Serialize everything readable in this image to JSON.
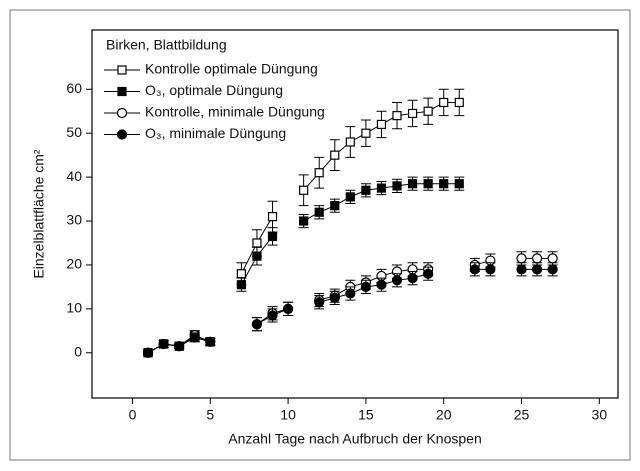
{
  "chart_data": {
    "type": "line",
    "legend_title": "Birken, Blattbildung",
    "xlabel": "Anzahl Tage nach Aufbruch der Knospen",
    "ylabel": "Einzelblattfläche cm²",
    "xlim": [
      -2.6,
      31.2
    ],
    "xticks": [
      0,
      5,
      10,
      15,
      20,
      25,
      30
    ],
    "ylim": [
      -10.3,
      73.5
    ],
    "yticks": [
      0,
      10,
      20,
      30,
      40,
      50,
      60
    ],
    "legend": "upper left",
    "series": [
      {
        "name": "Kontrolle optimale Düngung",
        "color": "#000000",
        "marker": "square",
        "filled": false,
        "x": [
          1,
          2,
          3,
          4,
          5,
          null,
          7,
          8,
          9,
          null,
          11,
          12,
          13,
          14,
          15,
          16,
          17,
          18,
          19,
          20,
          21
        ],
        "values": [
          0,
          2,
          1.5,
          4,
          2.5,
          null,
          18,
          25,
          31,
          null,
          37,
          41,
          45,
          48,
          50,
          52,
          54,
          54.5,
          55,
          57,
          57
        ],
        "errors": [
          0.5,
          0.8,
          0.5,
          1,
          0.8,
          null,
          2.5,
          3,
          3.5,
          null,
          3.5,
          3.5,
          3.5,
          3.5,
          3,
          3,
          3,
          3,
          3,
          3,
          3
        ]
      },
      {
        "name": "O₃, optimale Düngung",
        "color": "#000000",
        "marker": "square",
        "filled": true,
        "x": [
          1,
          2,
          3,
          4,
          5,
          null,
          7,
          8,
          9,
          null,
          11,
          12,
          13,
          14,
          15,
          16,
          17,
          18,
          19,
          20,
          21
        ],
        "values": [
          0,
          2,
          1.5,
          3.5,
          2.5,
          null,
          15.5,
          22,
          26.5,
          null,
          30,
          32,
          33.5,
          35.5,
          37,
          37.5,
          38,
          38.5,
          38.5,
          38.5,
          38.5
        ],
        "errors": [
          0.5,
          0.8,
          0.5,
          1,
          0.8,
          null,
          1.5,
          2,
          2,
          null,
          1.5,
          1.5,
          1.5,
          1.5,
          1.5,
          1.5,
          1.5,
          1.5,
          1.5,
          1.5,
          1.5
        ]
      },
      {
        "name": "Kontrolle, minimale Düngung",
        "color": "#000000",
        "marker": "circle",
        "filled": false,
        "x": [
          1,
          2,
          3,
          4,
          5,
          null,
          8,
          9,
          10,
          null,
          12,
          13,
          14,
          15,
          16,
          17,
          18,
          19,
          null,
          22,
          23,
          null,
          25,
          26,
          27
        ],
        "values": [
          0,
          2,
          1.5,
          4,
          2.5,
          null,
          6.5,
          9,
          10,
          null,
          12,
          13,
          15,
          16,
          17.5,
          18.5,
          19,
          19,
          null,
          20,
          21,
          null,
          21.5,
          21.5,
          21.5
        ],
        "errors": [
          0.5,
          0.8,
          0.5,
          1,
          0.8,
          null,
          1.5,
          1.5,
          1.5,
          null,
          1.5,
          1.5,
          1.5,
          1.5,
          1.5,
          1.5,
          1.5,
          1.5,
          null,
          1.5,
          1.5,
          null,
          1.5,
          1.5,
          1.5
        ]
      },
      {
        "name": "O₃, minimale Düngung",
        "color": "#000000",
        "marker": "circle",
        "filled": true,
        "x": [
          1,
          2,
          3,
          4,
          5,
          null,
          8,
          9,
          10,
          null,
          12,
          13,
          14,
          15,
          16,
          17,
          18,
          19,
          null,
          22,
          23,
          null,
          25,
          26,
          27
        ],
        "values": [
          0,
          2,
          1.5,
          3.5,
          2.5,
          null,
          6.5,
          8.5,
          10,
          null,
          11.5,
          12.5,
          13.5,
          15,
          15.5,
          16.5,
          17,
          18,
          null,
          19,
          19,
          null,
          19,
          19,
          19
        ],
        "errors": [
          0.5,
          0.8,
          0.5,
          1,
          0.8,
          null,
          1.5,
          1.5,
          1.5,
          null,
          1.5,
          1.5,
          1.5,
          1.5,
          1.5,
          1.5,
          1.5,
          1.5,
          null,
          1.5,
          1.5,
          null,
          1.5,
          1.5,
          1.5
        ]
      }
    ]
  }
}
